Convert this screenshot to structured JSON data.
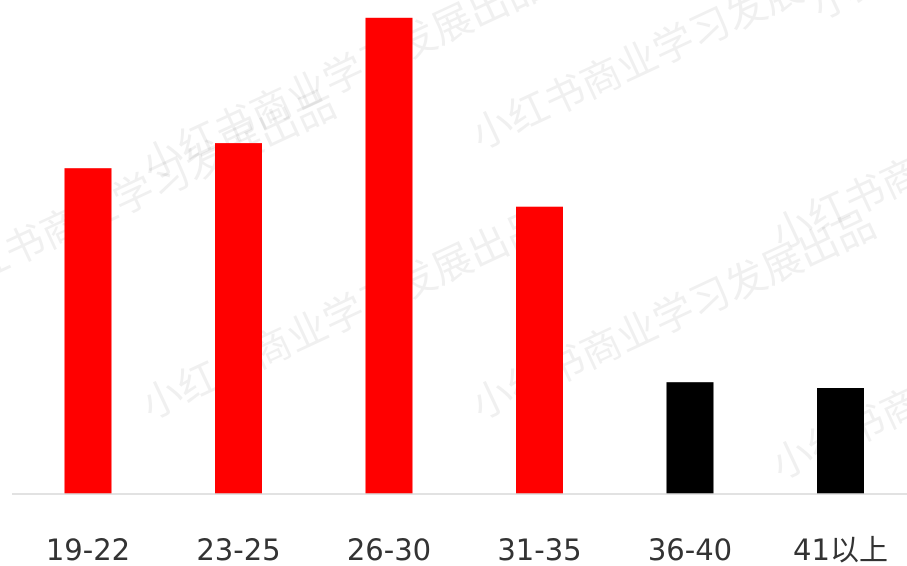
{
  "watermark": "小红书商业学习发展出品",
  "chart_data": {
    "type": "bar",
    "title": "",
    "xlabel": "",
    "ylabel": "",
    "categories": [
      "19-22",
      "23-25",
      "26-30",
      "31-35",
      "36-40",
      "41以上"
    ],
    "values": [
      16.9,
      18.2,
      24.7,
      14.9,
      5.8,
      5.5
    ],
    "ylim": [
      0,
      25
    ],
    "grid": false,
    "legend": "none",
    "colors": {
      "highlight": "#ff0000",
      "normal": "#000000",
      "axis": "#d9d9d9",
      "label": "#333333"
    },
    "bar_colors": [
      "#ff0000",
      "#ff0000",
      "#ff0000",
      "#ff0000",
      "#000000",
      "#000000"
    ]
  }
}
